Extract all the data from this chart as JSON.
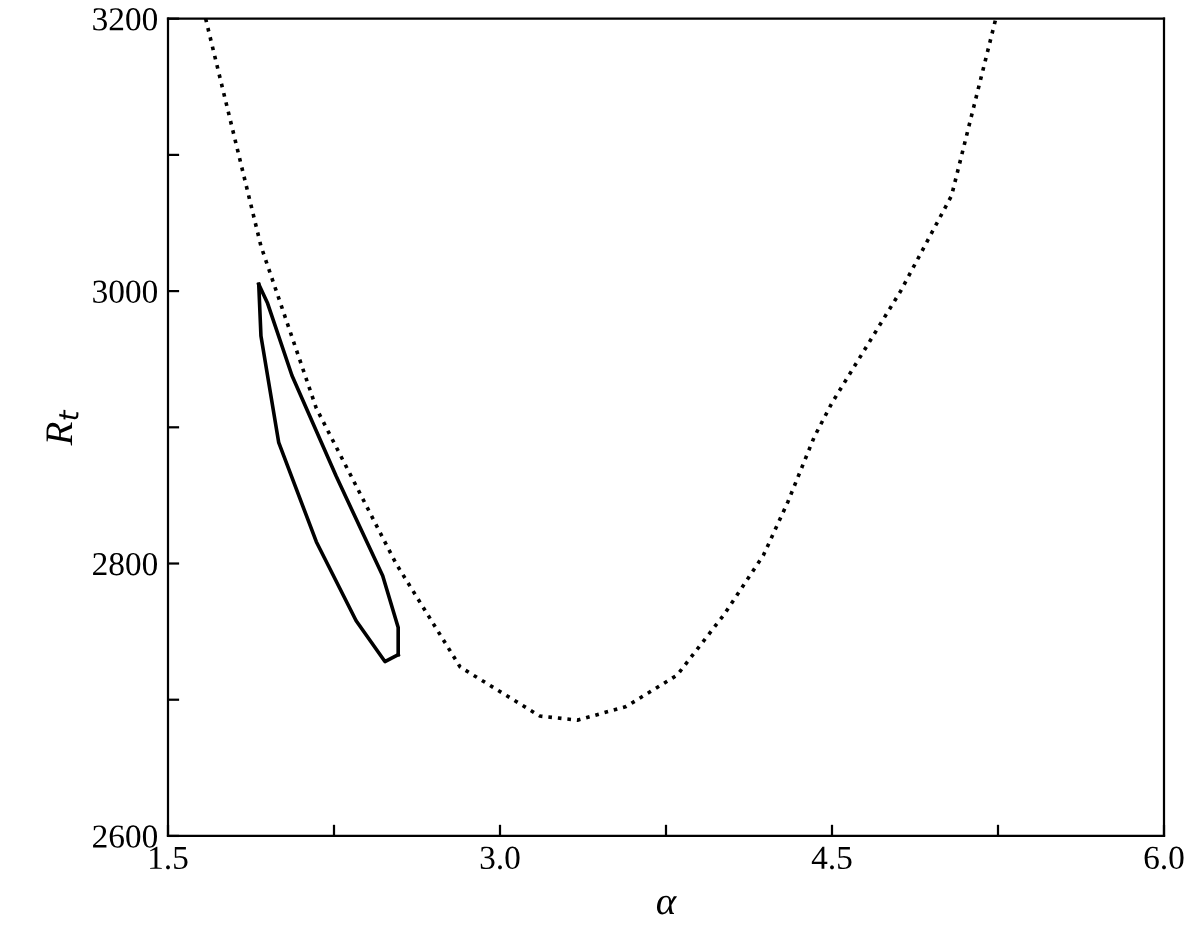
{
  "chart_data": {
    "type": "line",
    "xlabel": "α",
    "ylabel": "R$_{t}$",
    "xlim": [
      1.5,
      6.0
    ],
    "ylim": [
      2600,
      3200
    ],
    "xticks": [
      1.5,
      {
        "value": 2.25,
        "label": null
      },
      {
        "value": 3.0,
        "label": "3.0"
      },
      {
        "value": 3.75,
        "label": null
      },
      4.5,
      {
        "value": 5.25,
        "label": null
      },
      {
        "value": 6.0,
        "label": "6.0"
      }
    ],
    "yticks": [
      2600,
      {
        "value": 2700,
        "label": null
      },
      2800,
      {
        "value": 2900,
        "label": null
      },
      3000,
      {
        "value": 3100,
        "label": null
      },
      3200
    ],
    "grid": false,
    "legend": false,
    "series": [
      {
        "color": "#000000",
        "line_style": "dotted",
        "x": [
          1.67,
          1.92,
          2.17,
          2.53,
          2.82,
          3.18,
          3.35,
          3.57,
          3.8,
          4.01,
          4.19,
          4.3,
          4.42,
          4.5,
          4.81,
          5.04,
          5.24
        ],
        "values": [
          3200,
          3033,
          2914,
          2800,
          2724,
          2688,
          2685,
          2695,
          2718,
          2762,
          2806,
          2845,
          2893,
          2918,
          3000,
          3070,
          3200
        ]
      },
      {
        "color": "#000000",
        "line_style": "solid",
        "x": [
          1.91,
          1.92,
          2.0,
          2.17,
          2.35,
          2.48,
          2.54
        ],
        "values": [
          3005,
          2967,
          2889,
          2816,
          2758,
          2728,
          2733
        ]
      },
      {
        "color": "#000000",
        "line_style": "solid",
        "x": [
          1.91,
          1.95,
          2.06,
          2.26,
          2.47,
          2.54,
          2.54
        ],
        "values": [
          3005,
          2991,
          2938,
          2864,
          2791,
          2753,
          2733
        ]
      }
    ]
  }
}
